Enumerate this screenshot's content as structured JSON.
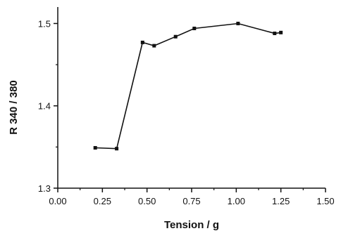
{
  "chart_data": {
    "type": "line",
    "xlabel": "Tension / g",
    "ylabel": "R 340 / 380",
    "xlim": [
      0.0,
      1.5
    ],
    "ylim": [
      1.3,
      1.52
    ],
    "x_ticks": [
      "0.00",
      "0.25",
      "0.50",
      "0.75",
      "1.00",
      "1.25",
      "1.50"
    ],
    "y_ticks": [
      "1.3",
      "1.4",
      "1.5"
    ],
    "grid": false,
    "series": [
      {
        "x": [
          0.21,
          0.33,
          0.475,
          0.54,
          0.66,
          0.765,
          1.01,
          1.215,
          1.25
        ],
        "y": [
          1.349,
          1.348,
          1.477,
          1.473,
          1.484,
          1.494,
          1.5,
          1.488,
          1.489
        ]
      }
    ],
    "colors": {
      "line": "#111111",
      "marker": "#111111",
      "axis": "#111111"
    }
  }
}
